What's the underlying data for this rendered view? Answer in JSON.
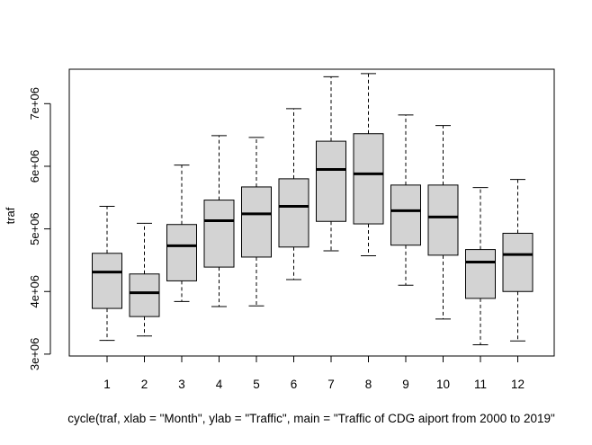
{
  "chart_data": {
    "type": "box",
    "xlabel": "cycle(traf, xlab = \"Month\", ylab = \"Traffic\", main = \"Traffic of CDG aiport from 2000 to 2019\"",
    "ylabel": "traf",
    "categories": [
      "1",
      "2",
      "3",
      "4",
      "5",
      "6",
      "7",
      "8",
      "9",
      "10",
      "11",
      "12"
    ],
    "y_ticks": [
      {
        "value": 3000000,
        "label": "3e+06"
      },
      {
        "value": 4000000,
        "label": "4e+06"
      },
      {
        "value": 5000000,
        "label": "5e+06"
      },
      {
        "value": 6000000,
        "label": "6e+06"
      },
      {
        "value": 7000000,
        "label": "7e+06"
      }
    ],
    "ylim": [
      2970000,
      7550000
    ],
    "boxes": [
      {
        "min": 3220000,
        "q1": 3730000,
        "median": 4310000,
        "q3": 4610000,
        "max": 5360000
      },
      {
        "min": 3290000,
        "q1": 3600000,
        "median": 3980000,
        "q3": 4280000,
        "max": 5090000
      },
      {
        "min": 3840000,
        "q1": 4170000,
        "median": 4730000,
        "q3": 5070000,
        "max": 6020000
      },
      {
        "min": 3760000,
        "q1": 4390000,
        "median": 5130000,
        "q3": 5460000,
        "max": 6490000
      },
      {
        "min": 3770000,
        "q1": 4550000,
        "median": 5240000,
        "q3": 5670000,
        "max": 6460000
      },
      {
        "min": 4190000,
        "q1": 4710000,
        "median": 5360000,
        "q3": 5800000,
        "max": 6920000
      },
      {
        "min": 4650000,
        "q1": 5120000,
        "median": 5950000,
        "q3": 6400000,
        "max": 7430000
      },
      {
        "min": 4570000,
        "q1": 5080000,
        "median": 5880000,
        "q3": 6520000,
        "max": 7480000
      },
      {
        "min": 4100000,
        "q1": 4740000,
        "median": 5290000,
        "q3": 5700000,
        "max": 6820000
      },
      {
        "min": 3560000,
        "q1": 4580000,
        "median": 5190000,
        "q3": 5700000,
        "max": 6650000
      },
      {
        "min": 3150000,
        "q1": 3890000,
        "median": 4470000,
        "q3": 4670000,
        "max": 5660000
      },
      {
        "min": 3210000,
        "q1": 4000000,
        "median": 4590000,
        "q3": 4930000,
        "max": 5790000
      }
    ],
    "colors": {
      "box_fill": "#d3d3d3",
      "stroke": "#000000"
    },
    "grid": false,
    "legend": "none"
  }
}
